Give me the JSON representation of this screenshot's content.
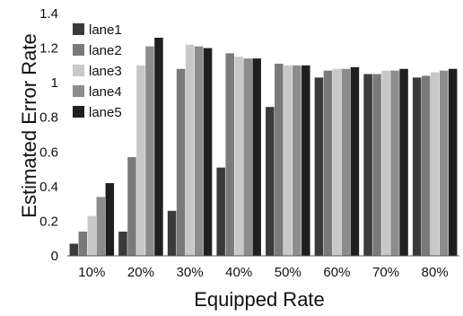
{
  "chart_data": {
    "type": "bar",
    "title": "",
    "xlabel": "Equipped Rate",
    "ylabel": "Estimated Error Rate",
    "categories": [
      "10%",
      "20%",
      "30%",
      "40%",
      "50%",
      "60%",
      "70%",
      "80%"
    ],
    "ylim": [
      0,
      1.4
    ],
    "yticks": [
      "0",
      "0.2",
      "0.4",
      "0.6",
      "0.8",
      "1",
      "1.2",
      "1.4"
    ],
    "grid": false,
    "legend_position": "top-left",
    "series": [
      {
        "name": "lane1",
        "color": "#3a3a3a",
        "values": [
          0.07,
          0.14,
          0.26,
          0.51,
          0.86,
          1.03,
          1.05,
          1.03
        ]
      },
      {
        "name": "lane2",
        "color": "#7a7a7a",
        "values": [
          0.14,
          0.57,
          1.08,
          1.17,
          1.11,
          1.07,
          1.05,
          1.04
        ]
      },
      {
        "name": "lane3",
        "color": "#c8c8c8",
        "values": [
          0.23,
          1.1,
          1.22,
          1.15,
          1.1,
          1.08,
          1.07,
          1.06
        ]
      },
      {
        "name": "lane4",
        "color": "#8c8c8c",
        "values": [
          0.34,
          1.21,
          1.21,
          1.14,
          1.1,
          1.08,
          1.07,
          1.07
        ]
      },
      {
        "name": "lane5",
        "color": "#1f1f1f",
        "values": [
          0.42,
          1.26,
          1.2,
          1.14,
          1.1,
          1.09,
          1.08,
          1.08
        ]
      }
    ]
  }
}
